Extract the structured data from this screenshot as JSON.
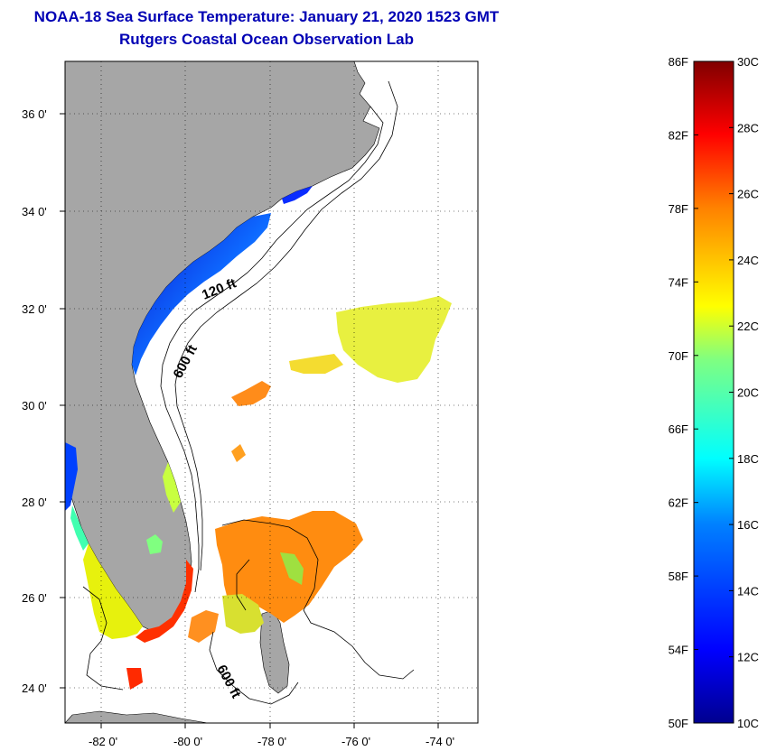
{
  "title": {
    "line1": "NOAA-18 Sea Surface Temperature:  January 21, 2020 1523 GMT",
    "line2": "Rutgers Coastal Ocean Observation Lab"
  },
  "map": {
    "lat_labels": [
      "36 0'",
      "34 0'",
      "32 0'",
      "30 0'",
      "28 0'",
      "26 0'",
      "24 0'"
    ],
    "lon_labels": [
      "-82 0'",
      "-80 0'",
      "-78 0'",
      "-76 0'",
      "-74 0'"
    ],
    "contour_labels": [
      "120 ft",
      "600 ft",
      "600 ft"
    ],
    "colors": {
      "land": "#a6a6a6",
      "ocean_no_data": "#ffffff",
      "grid": "#000000"
    }
  },
  "colorbar": {
    "fahrenheit_labels": [
      "86F",
      "82F",
      "78F",
      "74F",
      "70F",
      "66F",
      "62F",
      "58F",
      "54F",
      "50F"
    ],
    "celsius_labels": [
      "30C",
      "28C",
      "26C",
      "24C",
      "22C",
      "20C",
      "18C",
      "16C",
      "14C",
      "12C",
      "10C"
    ],
    "range_celsius": [
      10,
      30
    ],
    "colors": [
      "#00008f",
      "#0000ff",
      "#0080ff",
      "#00ffff",
      "#80ff80",
      "#ffff00",
      "#ff8000",
      "#ff0000",
      "#800000"
    ]
  }
}
